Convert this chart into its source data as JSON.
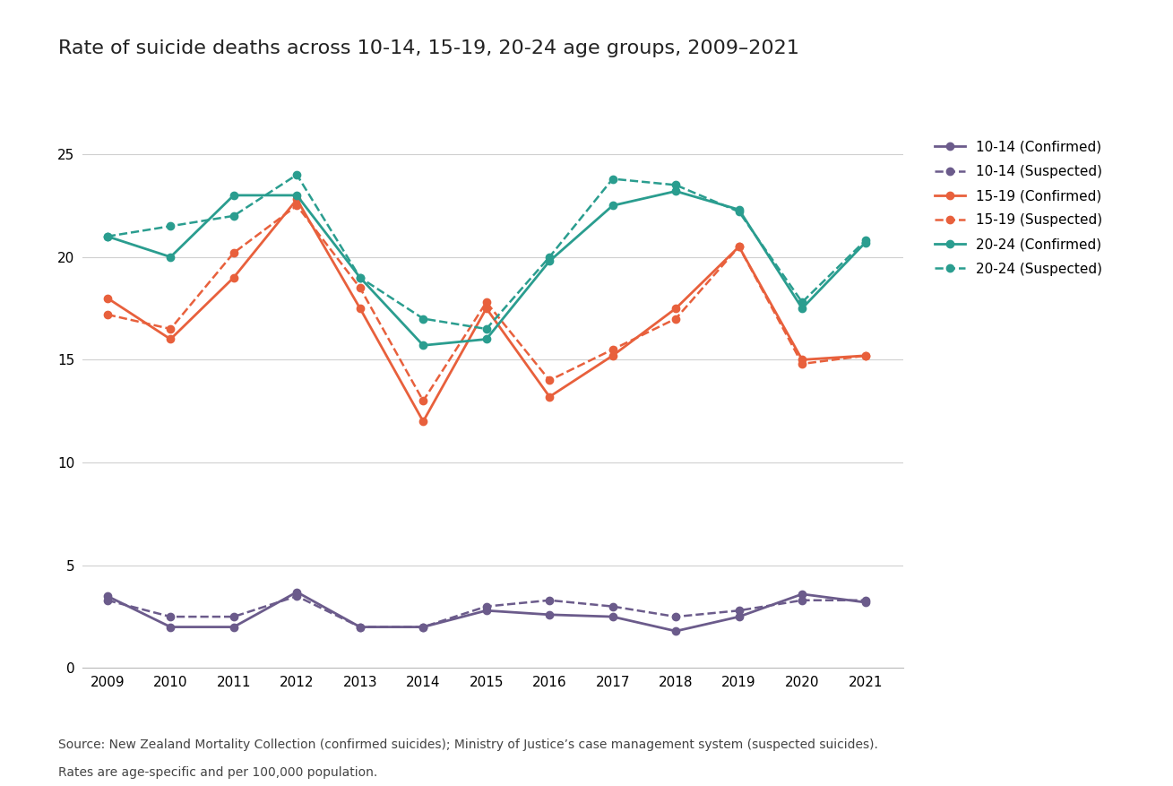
{
  "title": "Rate of suicide deaths across 10-14, 15-19, 20-24 age groups, 2009–2021",
  "years": [
    2009,
    2010,
    2011,
    2012,
    2013,
    2014,
    2015,
    2016,
    2017,
    2018,
    2019,
    2020,
    2021
  ],
  "series": {
    "10-14 Confirmed": [
      3.5,
      2.0,
      2.0,
      3.7,
      2.0,
      2.0,
      2.8,
      2.6,
      2.5,
      1.8,
      2.5,
      3.6,
      3.2
    ],
    "10-14 Suspected": [
      3.3,
      2.5,
      2.5,
      3.5,
      2.0,
      2.0,
      3.0,
      3.3,
      3.0,
      2.5,
      2.8,
      3.3,
      3.3
    ],
    "15-19 Confirmed": [
      18.0,
      16.0,
      19.0,
      22.8,
      17.5,
      12.0,
      17.5,
      13.2,
      15.2,
      17.5,
      20.5,
      15.0,
      15.2
    ],
    "15-19 Suspected": [
      17.2,
      16.5,
      20.2,
      22.5,
      18.5,
      13.0,
      17.8,
      14.0,
      15.5,
      17.0,
      20.5,
      14.8,
      15.2
    ],
    "20-24 Confirmed": [
      21.0,
      20.0,
      23.0,
      23.0,
      19.0,
      15.7,
      16.0,
      19.8,
      22.5,
      23.2,
      22.3,
      17.5,
      20.7
    ],
    "20-24 Suspected": [
      21.0,
      21.5,
      22.0,
      24.0,
      19.0,
      17.0,
      16.5,
      20.0,
      23.8,
      23.5,
      22.2,
      17.8,
      20.8
    ]
  },
  "colors": {
    "10-14": "#6b5b8b",
    "15-19": "#e8603c",
    "20-24": "#2a9d8f"
  },
  "source_line1": "Source: New Zealand Mortality Collection (confirmed suicides); Ministry of Justice’s case management system (suspected suicides).",
  "source_line2": "Rates are age-specific and per 100,000 population.",
  "ylim": [
    0,
    26
  ],
  "yticks": [
    0,
    5,
    10,
    15,
    20,
    25
  ],
  "background_color": "#ffffff",
  "title_fontsize": 16,
  "tick_fontsize": 11,
  "legend_fontsize": 11,
  "source_fontsize": 10
}
